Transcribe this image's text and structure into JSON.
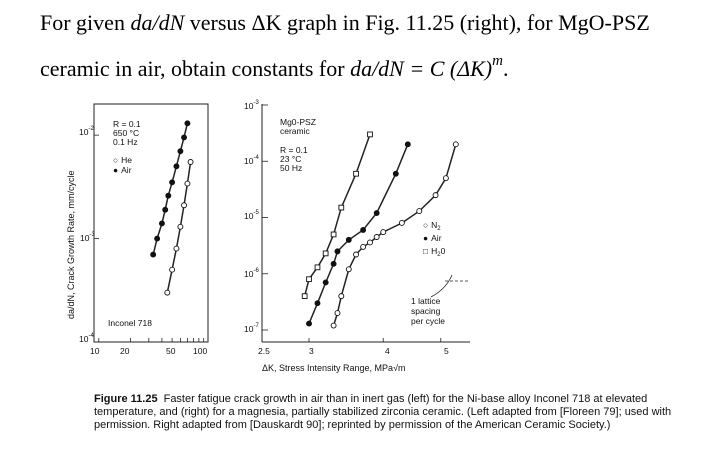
{
  "question": {
    "line1_prefix": "For given ",
    "line1_dadN": "da/dN",
    "line1_mid": " versus ΔK graph in Fig. 11.25 (right), for MgO-PSZ",
    "line2_prefix": "ceramic in air, obtain constants for ",
    "line2_dadN": "da/dN",
    "line2_eq": " = C (ΔK)",
    "line2_exp": "m",
    "line2_end": "."
  },
  "left_panel": {
    "ylabel": "da/dN, Crack Growth Rate, mm/cycle",
    "conditions": [
      "R = 0.1",
      "650 °C",
      "0.1 Hz"
    ],
    "legend": [
      {
        "marker": "○",
        "name": "He"
      },
      {
        "marker": "●",
        "name": "Air"
      }
    ],
    "material": "Inconel 718",
    "y_ticks": [
      "10",
      "10",
      "10"
    ],
    "y_tick_exps": [
      "-2",
      "-3",
      "-4"
    ],
    "x_ticks": [
      "10",
      "20",
      "50",
      "100"
    ]
  },
  "right_panel": {
    "material": [
      "Mg0-PSZ",
      "ceramic"
    ],
    "conditions": [
      "R = 0.1",
      "23 °C",
      "50 Hz"
    ],
    "y_ticks": [
      "10",
      "10",
      "10",
      "10",
      "10"
    ],
    "y_tick_exps": [
      "-3",
      "-4",
      "-5",
      "-6",
      "-7"
    ],
    "x_ticks": [
      "2.5",
      "3",
      "4",
      "5"
    ],
    "legend": [
      {
        "marker": "○",
        "name": "N",
        "sub": "2",
        "tail": ""
      },
      {
        "marker": "●",
        "name": "Air",
        "sub": "",
        "tail": ""
      },
      {
        "marker": "□",
        "name": "H",
        "sub": "2",
        "tail": "0"
      }
    ],
    "annotation": [
      "1 lattice",
      "spacing",
      "per cycle"
    ]
  },
  "xlabel": "ΔK, Stress Intensity Range, MPa√m",
  "caption": {
    "label": "Figure 11.25",
    "text": "Faster fatigue crack growth in air than in inert gas (left) for the Ni-base alloy Inconel 718 at elevated temperature, and (right) for a magnesia, partially stabilized zirconia ceramic. (Left adapted from [Floreen 79]; used with permission. Right adapted from [Dauskardt 90]; reprinted by permission of the American Ceramic Society.)"
  },
  "chart_data": [
    {
      "type": "scatter",
      "title": "",
      "xlabel": "ΔK, Stress Intensity Range, MPa√m",
      "ylabel": "da/dN, Crack Growth Rate, mm/cycle",
      "xscale": "log",
      "yscale": "log",
      "xlim": [
        9,
        110
      ],
      "ylim": [
        0.0001,
        0.02
      ],
      "series": [
        {
          "name": "Air",
          "marker": "filled-circle",
          "x": [
            33,
            36,
            40,
            43,
            46,
            50,
            55,
            60,
            65,
            70
          ],
          "y": [
            0.0007,
            0.001,
            0.0014,
            0.0019,
            0.0026,
            0.0035,
            0.005,
            0.007,
            0.0095,
            0.013
          ]
        },
        {
          "name": "He",
          "marker": "open-circle",
          "x": [
            45,
            50,
            55,
            60,
            65,
            70,
            75
          ],
          "y": [
            0.0003,
            0.0005,
            0.0008,
            0.0013,
            0.0021,
            0.0034,
            0.0055
          ]
        }
      ]
    },
    {
      "type": "scatter",
      "title": "",
      "xlabel": "ΔK, Stress Intensity Range, MPa√m",
      "ylabel": "",
      "xscale": "log",
      "yscale": "log",
      "xlim": [
        2.5,
        5.6
      ],
      "ylim": [
        1e-07,
        0.001
      ],
      "series": [
        {
          "name": "N2",
          "marker": "open-circle",
          "x": [
            3.3,
            3.35,
            3.4,
            3.5,
            3.6,
            3.7,
            3.8,
            3.9,
            4.0,
            4.3,
            4.6,
            4.9,
            5.1,
            5.3
          ],
          "y": [
            1.2e-07,
            2e-07,
            4e-07,
            1.2e-06,
            2.2e-06,
            3e-06,
            3.6e-06,
            4.5e-06,
            5.5e-06,
            8e-06,
            1.3e-05,
            2.5e-05,
            5e-05,
            0.0002
          ]
        },
        {
          "name": "Air",
          "marker": "filled-circle",
          "x": [
            3.0,
            3.1,
            3.2,
            3.3,
            3.35,
            3.5,
            3.7,
            3.9,
            4.2,
            4.4
          ],
          "y": [
            1.3e-07,
            3e-07,
            7e-07,
            1.5e-06,
            2.5e-06,
            4e-06,
            6e-06,
            1.2e-05,
            6e-05,
            0.0002
          ]
        },
        {
          "name": "H20",
          "marker": "open-square",
          "x": [
            2.95,
            3.0,
            3.1,
            3.2,
            3.3,
            3.4,
            3.6,
            3.8
          ],
          "y": [
            4e-07,
            8e-07,
            1.3e-06,
            2.3e-06,
            5e-06,
            1.5e-05,
            6e-05,
            0.0003
          ]
        }
      ]
    }
  ]
}
